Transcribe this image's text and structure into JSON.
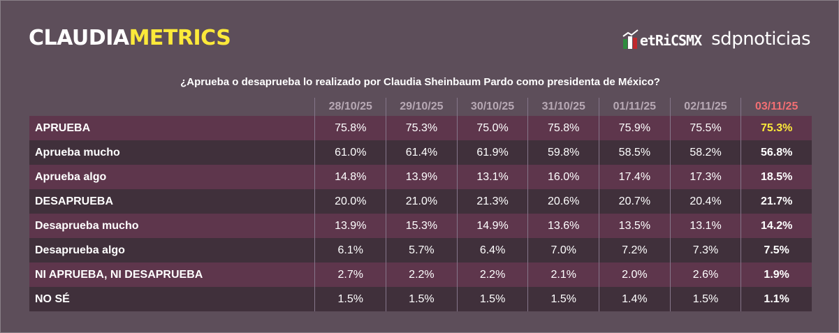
{
  "header": {
    "logo_part1": "CLAUDIA",
    "logo_part2": "METRICS",
    "partner1": "etRiCSMX",
    "partner2": "sdpnoticias",
    "accent_yellow": "#fce93a",
    "latest_date_color": "#f26f73"
  },
  "question": "¿Aprueba o desaprueba lo realizado por Claudia Sheinbaum Pardo como presidenta de México?",
  "table": {
    "dates": [
      "28/10/25",
      "29/10/25",
      "30/10/25",
      "31/10/25",
      "01/11/25",
      "02/11/25",
      "03/11/25"
    ],
    "rows": [
      {
        "label": "APRUEBA",
        "values": [
          "75.8%",
          "75.3%",
          "75.0%",
          "75.8%",
          "75.9%",
          "75.5%",
          "75.3%"
        ]
      },
      {
        "label": "Aprueba mucho",
        "values": [
          "61.0%",
          "61.4%",
          "61.9%",
          "59.8%",
          "58.5%",
          "58.2%",
          "56.8%"
        ]
      },
      {
        "label": "Aprueba algo",
        "values": [
          "14.8%",
          "13.9%",
          "13.1%",
          "16.0%",
          "17.4%",
          "17.3%",
          "18.5%"
        ]
      },
      {
        "label": "DESAPRUEBA",
        "values": [
          "20.0%",
          "21.0%",
          "21.3%",
          "20.6%",
          "20.7%",
          "20.4%",
          "21.7%"
        ]
      },
      {
        "label": "Desaprueba mucho",
        "values": [
          "13.9%",
          "15.3%",
          "14.9%",
          "13.6%",
          "13.5%",
          "13.1%",
          "14.2%"
        ]
      },
      {
        "label": "Desaprueba algo",
        "values": [
          "6.1%",
          "5.7%",
          "6.4%",
          "7.0%",
          "7.2%",
          "7.3%",
          "7.5%"
        ]
      },
      {
        "label": "NI APRUEBA, NI DESAPRUEBA",
        "values": [
          "2.7%",
          "2.2%",
          "2.2%",
          "2.1%",
          "2.0%",
          "2.6%",
          "1.9%"
        ]
      },
      {
        "label": "NO SÉ",
        "values": [
          "1.5%",
          "1.5%",
          "1.5%",
          "1.5%",
          "1.4%",
          "1.5%",
          "1.1%"
        ]
      }
    ]
  }
}
